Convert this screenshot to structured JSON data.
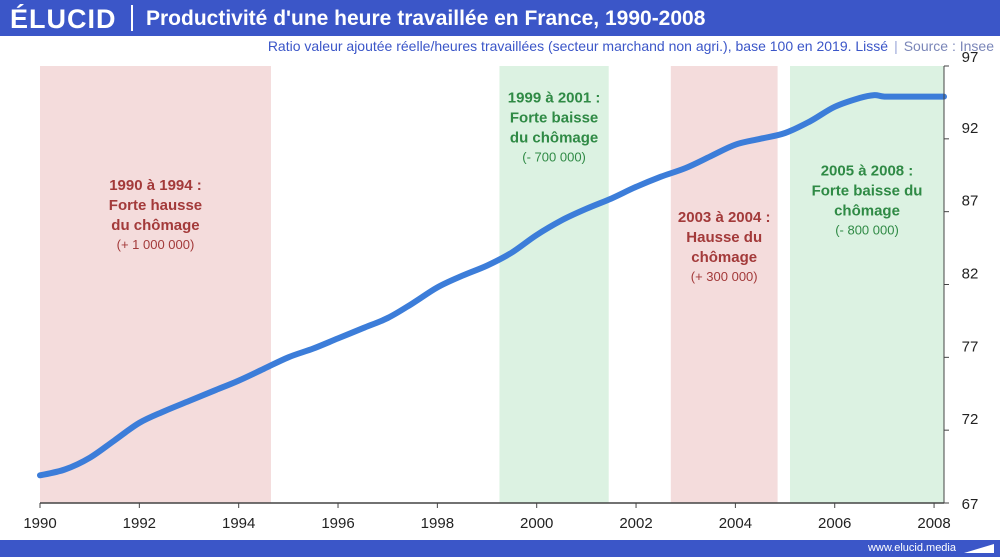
{
  "header": {
    "logo": "ÉLUCID",
    "title": "Productivité d'une heure travaillée en France, 1990-2008"
  },
  "subtitle": "Ratio valeur ajoutée réelle/heures travaillées (secteur marchand non agri.), base 100 en 2019. Lissé",
  "subtitle_sep": "|",
  "source": "Source : Insee",
  "footer": {
    "url": "www.elucid.media"
  },
  "colors": {
    "line": "#3c7dd9",
    "band_red": "#f4dcdc",
    "band_green": "#dcf2e2",
    "text_red": "#a33a3a",
    "text_green": "#2f8a45",
    "brand": "#3b56c8"
  },
  "chart_data": {
    "type": "line",
    "title": "Productivité d'une heure travaillée en France, 1990-2008",
    "xlim": [
      1990,
      2008.2
    ],
    "ylim": [
      67,
      97
    ],
    "xticks": [
      1990,
      1992,
      1994,
      1996,
      1998,
      2000,
      2002,
      2004,
      2006,
      2008
    ],
    "yticks": [
      67,
      72,
      77,
      82,
      87,
      92,
      97
    ],
    "grid": false,
    "series": [
      {
        "name": "",
        "x": [
          1990,
          1990.5,
          1991,
          1991.5,
          1992,
          1992.5,
          1993,
          1993.5,
          1994,
          1994.5,
          1995,
          1995.5,
          1996,
          1996.5,
          1997,
          1997.5,
          1998,
          1998.5,
          1999,
          1999.5,
          2000,
          2000.5,
          2001,
          2001.5,
          2002,
          2002.5,
          2003,
          2003.5,
          2004,
          2004.5,
          2005,
          2005.5,
          2006,
          2006.5,
          2006.8,
          2007,
          2007.5,
          2008,
          2008.2
        ],
        "values": [
          68.9,
          69.3,
          70.1,
          71.3,
          72.5,
          73.3,
          74.0,
          74.7,
          75.4,
          76.2,
          77.0,
          77.6,
          78.3,
          79.0,
          79.7,
          80.7,
          81.8,
          82.6,
          83.3,
          84.2,
          85.4,
          86.4,
          87.2,
          87.9,
          88.7,
          89.4,
          90.0,
          90.8,
          91.6,
          92.0,
          92.4,
          93.2,
          94.2,
          94.8,
          95.0,
          94.9,
          94.9,
          94.9,
          94.9
        ]
      }
    ],
    "bands": [
      {
        "from": 1990,
        "to": 1994.65,
        "color": "red",
        "title_lines": [
          "1990 à 1994 :",
          "Forte hausse",
          "du chômage"
        ],
        "sub": "(+ 1 000 000)",
        "label_y": 88.5
      },
      {
        "from": 1999.25,
        "to": 2001.45,
        "color": "green",
        "title_lines": [
          "1999 à 2001 :",
          "Forte baisse",
          "du chômage"
        ],
        "sub": "(- 700 000)",
        "label_y": 94.5
      },
      {
        "from": 2002.7,
        "to": 2004.85,
        "color": "red",
        "title_lines": [
          "2003 à 2004 :",
          "Hausse du",
          "chômage"
        ],
        "sub": "(+ 300 000)",
        "label_y": 86.3
      },
      {
        "from": 2005.1,
        "to": 2008.2,
        "color": "green",
        "title_lines": [
          "2005 à 2008 :",
          "Forte baisse du",
          "chômage"
        ],
        "sub": "(- 800 000)",
        "label_y": 89.5
      }
    ]
  }
}
